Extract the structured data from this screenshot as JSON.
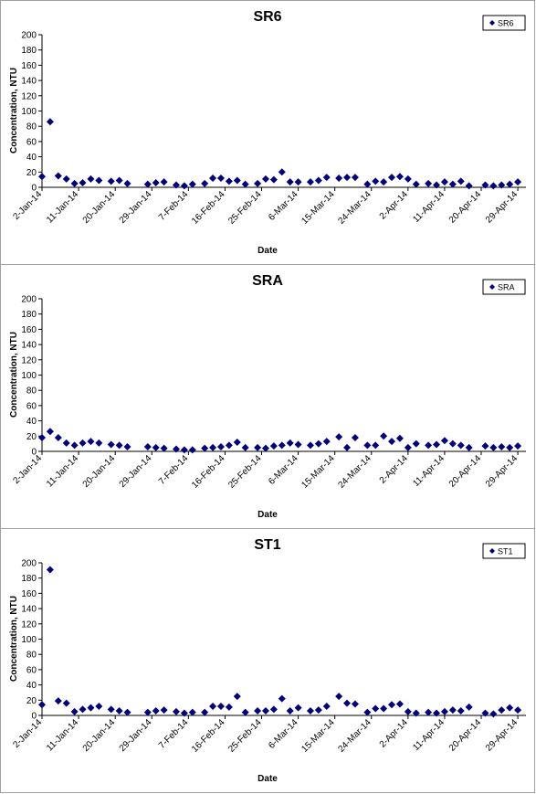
{
  "colors": {
    "marker": "#000080",
    "axis": "#000000",
    "panel_border": "#a0a0a0"
  },
  "chart_data": [
    {
      "type": "scatter",
      "title": "SR6",
      "xlabel": "Date",
      "ylabel": "Concentration, NTU",
      "ylim": [
        0,
        200
      ],
      "yticks": [
        0,
        20,
        40,
        60,
        80,
        100,
        120,
        140,
        160,
        180,
        200
      ],
      "xticks": [
        "2-Jan-14",
        "11-Jan-14",
        "20-Jan-14",
        "29-Jan-14",
        "7-Feb-14",
        "16-Feb-14",
        "25-Feb-14",
        "6-Mar-14",
        "15-Mar-14",
        "24-Mar-14",
        "2-Apr-14",
        "11-Apr-14",
        "20-Apr-14",
        "29-Apr-14"
      ],
      "grid": false,
      "legend": "top-right",
      "series": [
        {
          "name": "SR6",
          "x": [
            "2-Jan-14",
            "4-Jan-14",
            "6-Jan-14",
            "8-Jan-14",
            "10-Jan-14",
            "12-Jan-14",
            "14-Jan-14",
            "16-Jan-14",
            "19-Jan-14",
            "21-Jan-14",
            "23-Jan-14",
            "28-Jan-14",
            "30-Jan-14",
            "1-Feb-14",
            "4-Feb-14",
            "6-Feb-14",
            "8-Feb-14",
            "11-Feb-14",
            "13-Feb-14",
            "15-Feb-14",
            "17-Feb-14",
            "19-Feb-14",
            "21-Feb-14",
            "24-Feb-14",
            "26-Feb-14",
            "28-Feb-14",
            "2-Mar-14",
            "4-Mar-14",
            "6-Mar-14",
            "9-Mar-14",
            "11-Mar-14",
            "13-Mar-14",
            "16-Mar-14",
            "18-Mar-14",
            "20-Mar-14",
            "23-Mar-14",
            "25-Mar-14",
            "27-Mar-14",
            "29-Mar-14",
            "31-Mar-14",
            "2-Apr-14",
            "4-Apr-14",
            "7-Apr-14",
            "9-Apr-14",
            "11-Apr-14",
            "13-Apr-14",
            "15-Apr-14",
            "17-Apr-14",
            "21-Apr-14",
            "23-Apr-14",
            "25-Apr-14",
            "27-Apr-14",
            "29-Apr-14"
          ],
          "y": [
            14,
            86,
            15,
            11,
            5,
            6,
            11,
            9,
            8,
            9,
            5,
            4,
            6,
            7,
            3,
            2,
            4,
            5,
            12,
            12,
            8,
            9,
            4,
            5,
            11,
            10,
            20,
            7,
            7,
            7,
            9,
            13,
            12,
            13,
            13,
            4,
            8,
            7,
            13,
            14,
            11,
            4,
            5,
            3,
            7,
            4,
            8,
            2,
            3,
            2,
            3,
            4,
            7
          ]
        }
      ]
    },
    {
      "type": "scatter",
      "title": "SRA",
      "xlabel": "Date",
      "ylabel": "Concentration, NTU",
      "ylim": [
        0,
        200
      ],
      "yticks": [
        0,
        20,
        40,
        60,
        80,
        100,
        120,
        140,
        160,
        180,
        200
      ],
      "xticks": [
        "2-Jan-14",
        "11-Jan-14",
        "20-Jan-14",
        "29-Jan-14",
        "7-Feb-14",
        "16-Feb-14",
        "25-Feb-14",
        "6-Mar-14",
        "15-Mar-14",
        "24-Mar-14",
        "2-Apr-14",
        "11-Apr-14",
        "20-Apr-14",
        "29-Apr-14"
      ],
      "grid": false,
      "legend": "top-right",
      "series": [
        {
          "name": "SRA",
          "x": [
            "2-Jan-14",
            "4-Jan-14",
            "6-Jan-14",
            "8-Jan-14",
            "10-Jan-14",
            "12-Jan-14",
            "14-Jan-14",
            "16-Jan-14",
            "19-Jan-14",
            "21-Jan-14",
            "23-Jan-14",
            "28-Jan-14",
            "30-Jan-14",
            "1-Feb-14",
            "4-Feb-14",
            "6-Feb-14",
            "8-Feb-14",
            "11-Feb-14",
            "13-Feb-14",
            "15-Feb-14",
            "17-Feb-14",
            "19-Feb-14",
            "21-Feb-14",
            "24-Feb-14",
            "26-Feb-14",
            "28-Feb-14",
            "2-Mar-14",
            "4-Mar-14",
            "6-Mar-14",
            "9-Mar-14",
            "11-Mar-14",
            "13-Mar-14",
            "16-Mar-14",
            "18-Mar-14",
            "20-Mar-14",
            "23-Mar-14",
            "25-Mar-14",
            "27-Mar-14",
            "29-Mar-14",
            "31-Mar-14",
            "2-Apr-14",
            "4-Apr-14",
            "7-Apr-14",
            "9-Apr-14",
            "11-Apr-14",
            "13-Apr-14",
            "15-Apr-14",
            "17-Apr-14",
            "21-Apr-14",
            "23-Apr-14",
            "25-Apr-14",
            "27-Apr-14",
            "29-Apr-14"
          ],
          "y": [
            18,
            26,
            18,
            11,
            8,
            11,
            13,
            11,
            9,
            8,
            6,
            6,
            5,
            4,
            3,
            2,
            2,
            4,
            5,
            6,
            8,
            12,
            5,
            5,
            4,
            7,
            8,
            11,
            9,
            8,
            10,
            13,
            19,
            5,
            18,
            8,
            8,
            20,
            13,
            17,
            5,
            10,
            8,
            9,
            14,
            10,
            8,
            5,
            7,
            5,
            6,
            5,
            7
          ]
        }
      ]
    },
    {
      "type": "scatter",
      "title": "ST1",
      "xlabel": "Date",
      "ylabel": "Concentration, NTU",
      "ylim": [
        0,
        200
      ],
      "yticks": [
        0,
        20,
        40,
        60,
        80,
        100,
        120,
        140,
        160,
        180,
        200
      ],
      "xticks": [
        "2-Jan-14",
        "11-Jan-14",
        "20-Jan-14",
        "29-Jan-14",
        "7-Feb-14",
        "16-Feb-14",
        "25-Feb-14",
        "6-Mar-14",
        "15-Mar-14",
        "24-Mar-14",
        "2-Apr-14",
        "11-Apr-14",
        "20-Apr-14",
        "29-Apr-14"
      ],
      "grid": false,
      "legend": "top-right",
      "series": [
        {
          "name": "ST1",
          "x": [
            "2-Jan-14",
            "4-Jan-14",
            "6-Jan-14",
            "8-Jan-14",
            "10-Jan-14",
            "12-Jan-14",
            "14-Jan-14",
            "16-Jan-14",
            "19-Jan-14",
            "21-Jan-14",
            "23-Jan-14",
            "28-Jan-14",
            "30-Jan-14",
            "1-Feb-14",
            "4-Feb-14",
            "6-Feb-14",
            "8-Feb-14",
            "11-Feb-14",
            "13-Feb-14",
            "15-Feb-14",
            "17-Feb-14",
            "19-Feb-14",
            "21-Feb-14",
            "24-Feb-14",
            "26-Feb-14",
            "28-Feb-14",
            "2-Mar-14",
            "4-Mar-14",
            "6-Mar-14",
            "9-Mar-14",
            "11-Mar-14",
            "13-Mar-14",
            "16-Mar-14",
            "18-Mar-14",
            "20-Mar-14",
            "23-Mar-14",
            "25-Mar-14",
            "27-Mar-14",
            "29-Mar-14",
            "31-Mar-14",
            "2-Apr-14",
            "4-Apr-14",
            "7-Apr-14",
            "9-Apr-14",
            "11-Apr-14",
            "13-Apr-14",
            "15-Apr-14",
            "17-Apr-14",
            "21-Apr-14",
            "23-Apr-14",
            "25-Apr-14",
            "27-Apr-14",
            "29-Apr-14"
          ],
          "y": [
            14,
            191,
            19,
            16,
            5,
            8,
            10,
            12,
            8,
            6,
            4,
            4,
            6,
            7,
            5,
            3,
            4,
            4,
            12,
            12,
            11,
            25,
            4,
            6,
            6,
            8,
            22,
            6,
            10,
            6,
            7,
            12,
            25,
            16,
            15,
            4,
            9,
            9,
            14,
            15,
            5,
            3,
            4,
            3,
            5,
            7,
            6,
            11,
            3,
            2,
            7,
            10,
            7
          ]
        }
      ]
    }
  ]
}
